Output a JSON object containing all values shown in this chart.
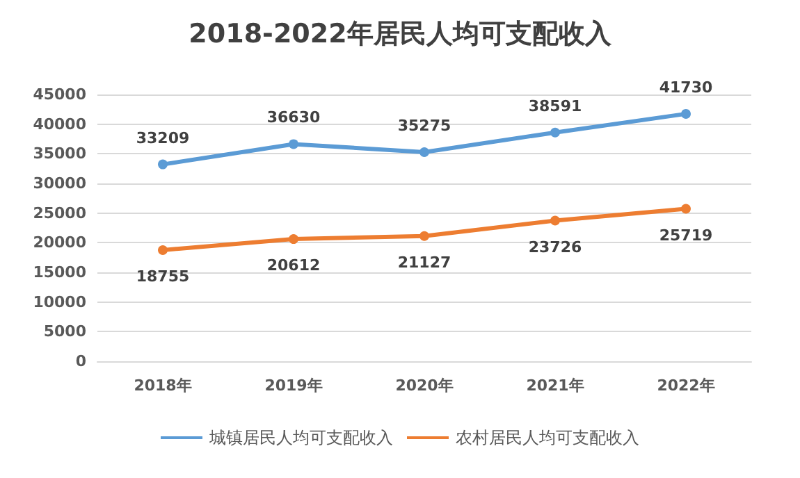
{
  "chart_data": {
    "type": "line",
    "title": "2018-2022年居民人均可支配收入",
    "categories": [
      "2018年",
      "2019年",
      "2020年",
      "2021年",
      "2022年"
    ],
    "series": [
      {
        "name": "城镇居民人均可支配收入",
        "color": "#5b9bd5",
        "values": [
          33209,
          36630,
          35275,
          38591,
          41730
        ]
      },
      {
        "name": "农村居民人均可支配收入",
        "color": "#ed7d31",
        "values": [
          18755,
          20612,
          21127,
          23726,
          25719
        ]
      }
    ],
    "ylim": [
      0,
      45000
    ],
    "yticks": [
      0,
      5000,
      10000,
      15000,
      20000,
      25000,
      30000,
      35000,
      40000,
      45000
    ],
    "grid": "y",
    "legend": "bottom",
    "marker": "circle",
    "line_style": "solid",
    "data_labels": true
  }
}
